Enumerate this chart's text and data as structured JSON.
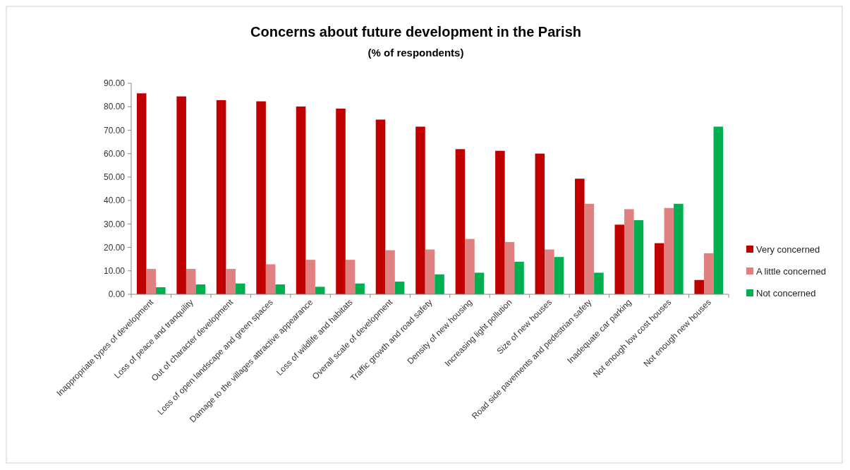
{
  "chart_data": {
    "type": "bar",
    "title": "Concerns about future development in the Parish",
    "subtitle": "(% of respondents)",
    "categories": [
      "Inappropriate types of development",
      "Loss of peace and tranquility",
      "Out of character development",
      "Loss of open landscape and green spaces",
      "Damage to the villages attractive appearance",
      "Loss of wildlife and habitats",
      "Overall scale of development",
      "Traffic growth and road safety",
      "Density of new housing",
      "Increasing light pollution",
      "Size of new houses",
      "Road side pavements and pedestrian safety",
      "Inadequate car parking",
      "Not enough low cost houses",
      "Not enough new houses"
    ],
    "series": [
      {
        "name": "Very concerned",
        "color": "#c00000",
        "values": [
          85.7,
          84.4,
          82.8,
          82.3,
          80.1,
          79.2,
          74.5,
          71.5,
          61.9,
          61.2,
          60.0,
          49.3,
          29.7,
          21.8,
          6.1
        ]
      },
      {
        "name": "A little concerned",
        "color": "#e08080",
        "values": [
          10.8,
          10.8,
          10.8,
          12.8,
          14.7,
          14.7,
          18.8,
          19.1,
          23.6,
          22.3,
          19.1,
          38.6,
          36.3,
          36.8,
          17.5
        ]
      },
      {
        "name": "Not concerned",
        "color": "#00b050",
        "values": [
          3.0,
          4.2,
          4.6,
          4.2,
          3.2,
          4.6,
          5.4,
          8.5,
          9.2,
          13.9,
          15.9,
          9.2,
          31.6,
          38.6,
          71.5
        ]
      }
    ],
    "ylim": [
      0,
      90
    ],
    "yticks": [
      {
        "value": 0,
        "label": "0.00"
      },
      {
        "value": 10,
        "label": "10.00"
      },
      {
        "value": 20,
        "label": "20.00"
      },
      {
        "value": 30,
        "label": "30.00"
      },
      {
        "value": 40,
        "label": "40.00"
      },
      {
        "value": 50,
        "label": "50.00"
      },
      {
        "value": 60,
        "label": "60.00"
      },
      {
        "value": 70,
        "label": "70.00"
      },
      {
        "value": 80,
        "label": "80.00"
      },
      {
        "value": 90,
        "label": "90.00"
      }
    ],
    "grid": false,
    "legend": "right"
  }
}
